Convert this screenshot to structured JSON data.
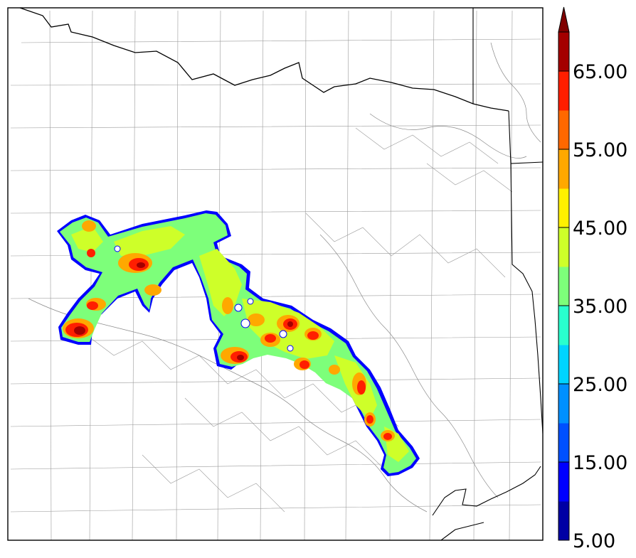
{
  "colorbar": {
    "tick_labels": [
      "5.00",
      "15.00",
      "25.00",
      "35.00",
      "45.00",
      "55.00",
      "65.00"
    ],
    "tick_values": [
      5,
      15,
      25,
      35,
      45,
      55,
      65
    ],
    "range": [
      5,
      70
    ],
    "extend": "max",
    "levels": [
      5,
      10,
      15,
      20,
      25,
      30,
      35,
      40,
      45,
      50,
      55,
      60,
      65,
      70
    ],
    "colors": [
      "#0000a4",
      "#0000ff",
      "#0050ff",
      "#0090ff",
      "#00d4ff",
      "#29ffce",
      "#7dff7a",
      "#ceff29",
      "#fff000",
      "#ffa800",
      "#ff6800",
      "#ff1e00",
      "#a40000"
    ],
    "overflow_color": "#800000",
    "placement": "right"
  },
  "map": {
    "region": "Texas",
    "field_colors": {
      "edge": "#0000ff",
      "low": "#7dff7a",
      "mid": "#ceff29",
      "high": "#ffa800",
      "peak": "#ff1e00",
      "max": "#a40000"
    }
  }
}
